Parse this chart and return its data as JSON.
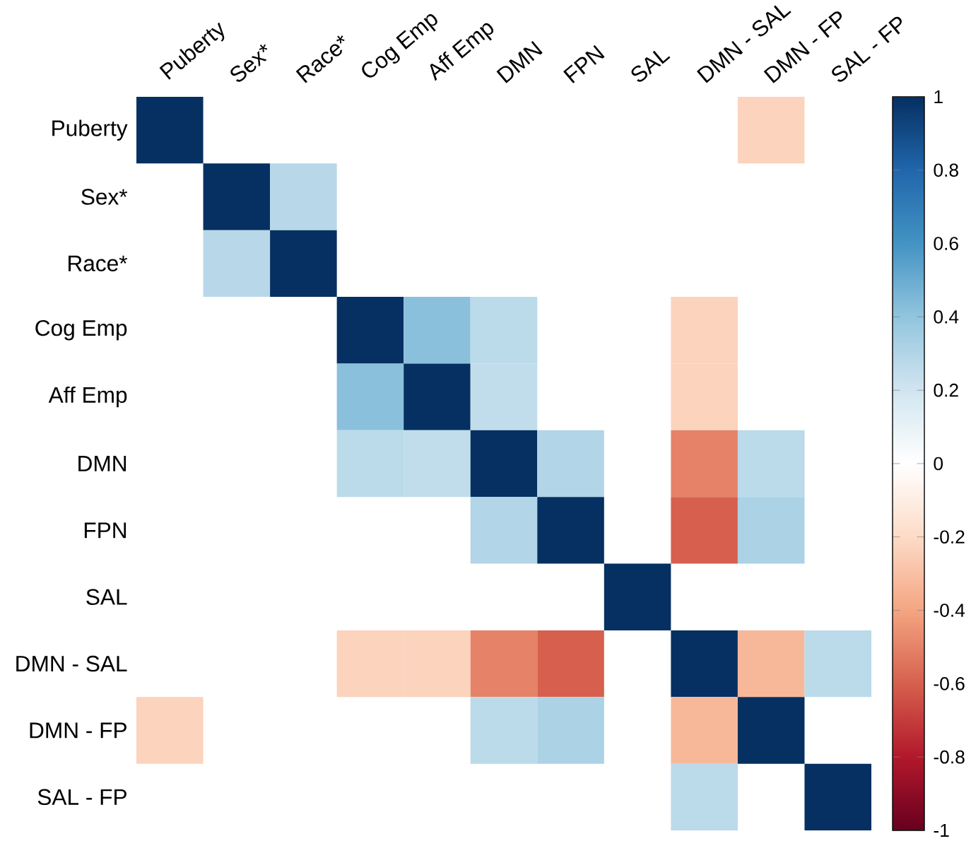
{
  "chart_data": {
    "type": "heatmap",
    "categories": [
      "Puberty",
      "Sex*",
      "Race*",
      "Cog Emp",
      "Aff Emp",
      "DMN",
      "FPN",
      "SAL",
      "DMN - SAL",
      "DMN - FP",
      "SAL - FP"
    ],
    "y_categories": [
      "Puberty",
      "Sex*",
      "Race*",
      "Cog Emp",
      "Aff Emp",
      "DMN",
      "FPN",
      "SAL",
      "DMN - SAL",
      "DMN - FP",
      "SAL - FP"
    ],
    "cells": [
      [
        1,
        null,
        null,
        null,
        null,
        null,
        null,
        null,
        null,
        -0.23,
        null
      ],
      [
        null,
        1,
        0.28,
        null,
        null,
        null,
        null,
        null,
        null,
        null,
        null
      ],
      [
        null,
        0.28,
        1,
        null,
        null,
        null,
        null,
        null,
        null,
        null,
        null
      ],
      [
        null,
        null,
        null,
        1,
        0.42,
        0.27,
        null,
        null,
        -0.23,
        null,
        null
      ],
      [
        null,
        null,
        null,
        0.42,
        1,
        0.25,
        null,
        null,
        -0.23,
        null,
        null
      ],
      [
        null,
        null,
        null,
        0.27,
        0.25,
        1,
        0.3,
        null,
        -0.5,
        0.27,
        null
      ],
      [
        null,
        null,
        null,
        null,
        null,
        0.3,
        1,
        null,
        -0.6,
        0.32,
        null
      ],
      [
        null,
        null,
        null,
        null,
        null,
        null,
        null,
        1,
        null,
        null,
        null
      ],
      [
        null,
        null,
        null,
        -0.23,
        -0.23,
        -0.5,
        -0.6,
        null,
        1,
        -0.33,
        0.27
      ],
      [
        -0.23,
        null,
        null,
        null,
        null,
        0.27,
        0.32,
        null,
        -0.33,
        1,
        null
      ],
      [
        null,
        null,
        null,
        null,
        null,
        null,
        null,
        null,
        0.27,
        null,
        1
      ]
    ],
    "clim": [
      -1,
      1
    ],
    "cticks": [
      -1,
      -0.8,
      -0.6,
      -0.4,
      -0.2,
      0,
      0.2,
      0.4,
      0.6,
      0.8,
      1
    ]
  }
}
